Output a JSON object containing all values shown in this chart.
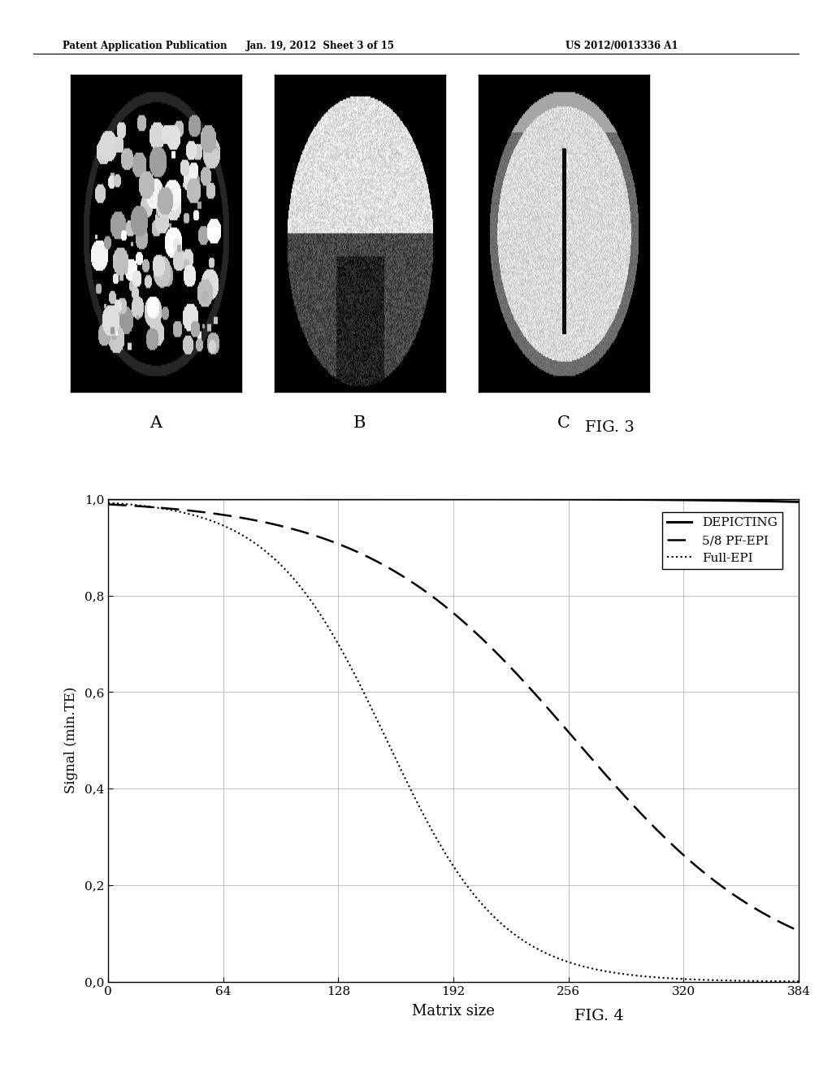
{
  "header_left": "Patent Application Publication",
  "header_center": "Jan. 19, 2012  Sheet 3 of 15",
  "header_right": "US 2012/0013336 A1",
  "fig3_label": "FIG. 3",
  "fig4_label": "FIG. 4",
  "image_labels": [
    "A",
    "B",
    "C"
  ],
  "xlabel": "Matrix size",
  "ylabel": "Signal (min.TE)",
  "xticks": [
    0,
    64,
    128,
    192,
    256,
    320,
    384
  ],
  "yticks": [
    0.0,
    0.2,
    0.4,
    0.6,
    0.8,
    1.0
  ],
  "ytick_labels": [
    "0,0",
    "0,2",
    "0,4",
    "0,6",
    "0,8",
    "1,0"
  ],
  "xlim": [
    0,
    384
  ],
  "ylim": [
    0.0,
    1.0
  ],
  "legend_entries": [
    "DEPICTING",
    "5/8 PF-EPI",
    "Full-EPI"
  ],
  "bg_color": "#ffffff",
  "line_color": "#000000",
  "grid_color": "#c0c0c0",
  "depicting_midpoint": 900,
  "depicting_scale": 80,
  "pf_epi_midpoint": 260,
  "pf_epi_scale": 58,
  "full_epi_midpoint": 155,
  "full_epi_scale": 32
}
